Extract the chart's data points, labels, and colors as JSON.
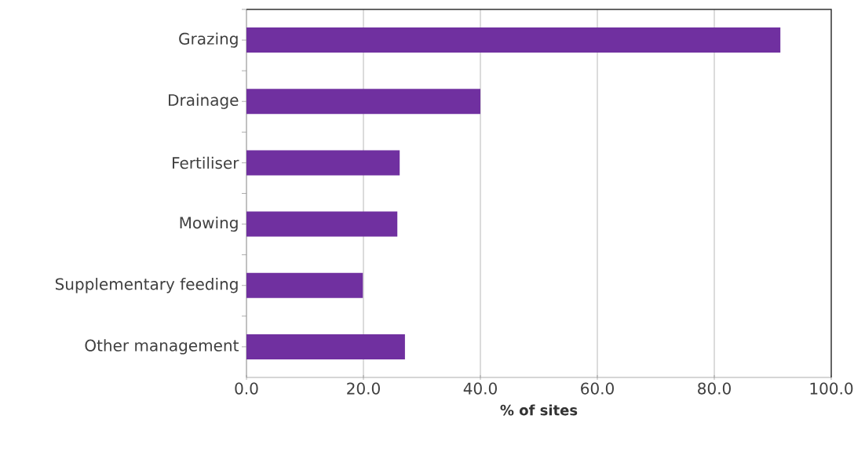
{
  "chart_data": {
    "type": "bar",
    "orientation": "horizontal",
    "xlabel": "% of sites",
    "categories": [
      "Grazing",
      "Drainage",
      "Fertiliser",
      "Mowing",
      "Supplementary feeding",
      "Other management"
    ],
    "values": [
      91.3,
      40.0,
      26.2,
      25.8,
      19.9,
      27.1
    ],
    "color": "#7030a0",
    "xlim": [
      0,
      100
    ],
    "xticks": [
      {
        "value": 0,
        "label": "0.0"
      },
      {
        "value": 20,
        "label": "20.0"
      },
      {
        "value": 40,
        "label": "40.0"
      },
      {
        "value": 60,
        "label": "60.0"
      },
      {
        "value": 80,
        "label": "80.0"
      },
      {
        "value": 100,
        "label": "100.0"
      }
    ],
    "grid": "x"
  }
}
